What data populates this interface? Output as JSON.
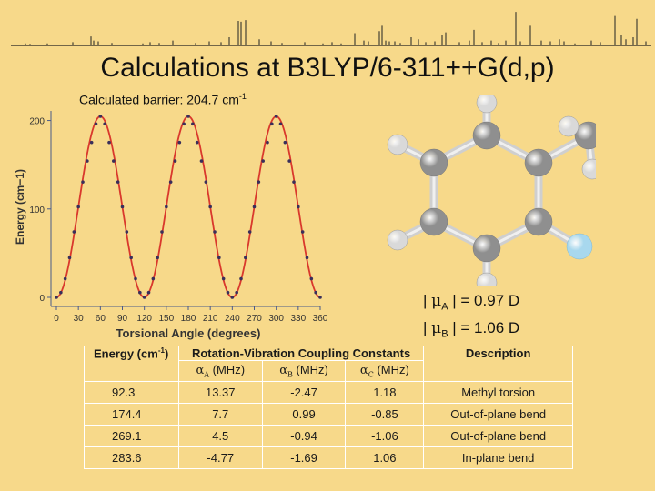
{
  "slide": {
    "title": "Calculations at B3LYP/6-311++G(d,p)",
    "barrier_label": "Calculated barrier:  204.7 cm",
    "barrier_sup": "-1"
  },
  "spectrum": {
    "color": "#222222",
    "lines": [
      [
        28,
        0.05
      ],
      [
        33,
        0.04
      ],
      [
        52,
        0.05
      ],
      [
        80,
        0.08
      ],
      [
        100,
        0.22
      ],
      [
        103,
        0.12
      ],
      [
        108,
        0.1
      ],
      [
        123,
        0.06
      ],
      [
        157,
        0.05
      ],
      [
        165,
        0.08
      ],
      [
        175,
        0.06
      ],
      [
        190,
        0.12
      ],
      [
        215,
        0.06
      ],
      [
        230,
        0.1
      ],
      [
        243,
        0.08
      ],
      [
        252,
        0.2
      ],
      [
        262,
        0.6
      ],
      [
        265,
        0.58
      ],
      [
        270,
        0.62
      ],
      [
        285,
        0.15
      ],
      [
        298,
        0.1
      ],
      [
        310,
        0.06
      ],
      [
        335,
        0.08
      ],
      [
        355,
        0.05
      ],
      [
        365,
        0.08
      ],
      [
        375,
        0.05
      ],
      [
        390,
        0.3
      ],
      [
        400,
        0.12
      ],
      [
        405,
        0.1
      ],
      [
        417,
        0.35
      ],
      [
        420,
        0.48
      ],
      [
        424,
        0.12
      ],
      [
        428,
        0.1
      ],
      [
        434,
        0.1
      ],
      [
        440,
        0.06
      ],
      [
        452,
        0.2
      ],
      [
        460,
        0.15
      ],
      [
        468,
        0.08
      ],
      [
        478,
        0.1
      ],
      [
        486,
        0.25
      ],
      [
        490,
        0.32
      ],
      [
        505,
        0.08
      ],
      [
        516,
        0.12
      ],
      [
        521,
        0.38
      ],
      [
        530,
        0.08
      ],
      [
        540,
        0.12
      ],
      [
        548,
        0.06
      ],
      [
        556,
        0.12
      ],
      [
        567,
        0.82
      ],
      [
        572,
        0.1
      ],
      [
        583,
        0.48
      ],
      [
        595,
        0.12
      ],
      [
        605,
        0.1
      ],
      [
        615,
        0.15
      ],
      [
        620,
        0.1
      ],
      [
        632,
        0.05
      ],
      [
        650,
        0.12
      ],
      [
        660,
        0.08
      ],
      [
        676,
        0.72
      ],
      [
        683,
        0.25
      ],
      [
        688,
        0.15
      ],
      [
        696,
        0.2
      ],
      [
        700,
        0.65
      ],
      [
        710,
        0.1
      ]
    ]
  },
  "chart_data": {
    "type": "scatter",
    "xlabel": "Torsional Angle (degrees)",
    "ylabel": "Energy (cm−1)",
    "xlim": [
      0,
      360
    ],
    "ylim": [
      0,
      204.7
    ],
    "x_ticks": [
      "0",
      "30",
      "60",
      "90",
      "120",
      "150",
      "180",
      "210",
      "240",
      "270",
      "300",
      "330",
      "360"
    ],
    "y_ticks": [
      "0",
      "100",
      "200"
    ],
    "fit_color": "#d9382c",
    "point_color": "#3a2f5a",
    "series": [
      {
        "x": [
          0,
          6,
          12,
          18,
          24,
          30,
          36,
          42,
          48,
          54,
          60,
          66,
          72,
          78,
          84,
          90,
          96,
          102,
          108,
          114,
          120,
          126,
          132,
          138,
          144,
          150,
          156,
          162,
          168,
          174,
          180,
          186,
          192,
          198,
          204,
          210,
          216,
          222,
          228,
          234,
          240,
          246,
          252,
          258,
          264,
          270,
          276,
          282,
          288,
          294,
          300,
          306,
          312,
          318,
          324,
          330,
          336,
          342,
          348,
          354,
          360
        ],
        "y": [
          0,
          5.5,
          21.1,
          44.9,
          74.0,
          102.4,
          130.5,
          154.2,
          175.2,
          196.2,
          204.7,
          196.2,
          175.2,
          154.2,
          130.5,
          102.4,
          74.0,
          44.9,
          21.1,
          5.5,
          0,
          5.5,
          21.1,
          44.9,
          74.0,
          102.4,
          130.5,
          154.2,
          175.2,
          196.2,
          204.7,
          196.2,
          175.2,
          154.2,
          130.5,
          102.4,
          74.0,
          44.9,
          21.1,
          5.5,
          0,
          5.5,
          21.1,
          44.9,
          74.0,
          102.4,
          130.5,
          154.2,
          175.2,
          196.2,
          204.7,
          196.2,
          175.2,
          154.2,
          130.5,
          102.4,
          74.0,
          44.9,
          21.1,
          5.5,
          0
        ]
      }
    ]
  },
  "molecule": {
    "carbon_color": "#8f8f8f",
    "hydrogen_color": "#d9d9d9",
    "fluorine_color": "#a8d8ee",
    "bond_color": "#cfcfcf"
  },
  "dipoles": {
    "mu_a_sub": "A",
    "mu_a_value": " | = 0.97 D",
    "mu_b_sub": "B",
    "mu_b_value": " | = 1.06 D"
  },
  "table": {
    "headers": {
      "energy": "Energy (cm",
      "energy_sup": "-1",
      "energy_close": ")",
      "coupling": "Rotation-Vibration Coupling Constants",
      "description": "Description",
      "alpha_a_sub": "A",
      "alpha_b_sub": "B",
      "alpha_c_sub": "C",
      "unit": " (MHz)"
    },
    "rows": [
      {
        "energy": "92.3",
        "a": "13.37",
        "b": "-2.47",
        "c": "1.18",
        "desc": "Methyl torsion"
      },
      {
        "energy": "174.4",
        "a": "7.7",
        "b": "0.99",
        "c": "-0.85",
        "desc": "Out-of-plane bend"
      },
      {
        "energy": "269.1",
        "a": "4.5",
        "b": "-0.94",
        "c": "-1.06",
        "desc": "Out-of-plane bend"
      },
      {
        "energy": "283.6",
        "a": "-4.77",
        "b": "-1.69",
        "c": "1.06",
        "desc": "In-plane bend"
      }
    ]
  }
}
